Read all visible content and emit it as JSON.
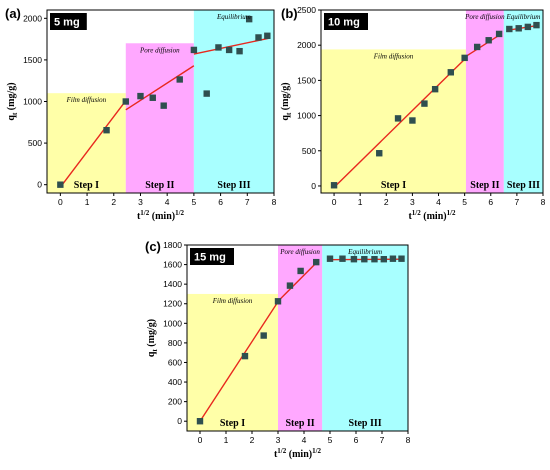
{
  "colors": {
    "film": "#ffff99",
    "pore": "#ff99ff",
    "equilibrium": "#99ffff",
    "fit_line": "#e8281e",
    "marker": "#2f4f4f",
    "mass_box": "#000000"
  },
  "chart_data": [
    {
      "type": "scatter",
      "panel_label": "(a)",
      "mass_label": "5 mg",
      "xlabel": "t",
      "ylabel": "q",
      "xlim": [
        -0.5,
        8
      ],
      "ylim": [
        -100,
        2100
      ],
      "x_ticks": [
        0,
        1,
        2,
        3,
        4,
        5,
        6,
        7,
        8
      ],
      "y_ticks": [
        0,
        500,
        1000,
        1500,
        2000
      ],
      "regions": [
        {
          "name": "Film diffusion",
          "step": "Step I",
          "x_start": -0.5,
          "x_end": 2.45,
          "y_top": 1100,
          "color": "film"
        },
        {
          "name": "Pore diffusion",
          "step": "Step II",
          "x_start": 2.45,
          "x_end": 5.0,
          "y_top": 1700,
          "color": "pore"
        },
        {
          "name": "Equilibrium",
          "step": "Step III",
          "x_start": 5.0,
          "x_end": 8.0,
          "y_top": 2100,
          "color": "equilibrium"
        }
      ],
      "points": [
        {
          "x": 0,
          "y": 0
        },
        {
          "x": 1.73,
          "y": 655
        },
        {
          "x": 2.45,
          "y": 1000
        },
        {
          "x": 3.0,
          "y": 1065
        },
        {
          "x": 3.46,
          "y": 1045
        },
        {
          "x": 3.87,
          "y": 950
        },
        {
          "x": 4.47,
          "y": 1265
        },
        {
          "x": 5.0,
          "y": 1620
        },
        {
          "x": 5.48,
          "y": 1095
        },
        {
          "x": 5.92,
          "y": 1650
        },
        {
          "x": 6.32,
          "y": 1620
        },
        {
          "x": 6.71,
          "y": 1605
        },
        {
          "x": 7.07,
          "y": 1990
        },
        {
          "x": 7.42,
          "y": 1770
        },
        {
          "x": 7.75,
          "y": 1790
        }
      ],
      "fit_lines": [
        {
          "x": [
            0,
            2.45
          ],
          "y": [
            -30,
            1010
          ]
        },
        {
          "x": [
            2.45,
            5.0
          ],
          "y": [
            900,
            1430
          ]
        },
        {
          "x": [
            5.0,
            7.8
          ],
          "y": [
            1570,
            1760
          ]
        }
      ]
    },
    {
      "type": "scatter",
      "panel_label": "(b)",
      "mass_label": "10 mg",
      "xlabel": "t",
      "ylabel": "q",
      "xlim": [
        -0.5,
        8
      ],
      "ylim": [
        -100,
        2500
      ],
      "x_ticks": [
        0,
        1,
        2,
        3,
        4,
        5,
        6,
        7,
        8
      ],
      "y_ticks": [
        0,
        500,
        1000,
        1500,
        2000,
        2500
      ],
      "regions": [
        {
          "name": "Film diffusion",
          "step": "Step I",
          "x_start": -0.5,
          "x_end": 5.05,
          "y_top": 1940,
          "color": "film"
        },
        {
          "name": "Pore diffusion",
          "step": "Step II",
          "x_start": 5.05,
          "x_end": 6.5,
          "y_top": 2500,
          "color": "pore"
        },
        {
          "name": "Equilibrium",
          "step": "Step III",
          "x_start": 6.5,
          "x_end": 8.0,
          "y_top": 2500,
          "color": "equilibrium"
        }
      ],
      "points": [
        {
          "x": 0,
          "y": 10
        },
        {
          "x": 1.73,
          "y": 465
        },
        {
          "x": 2.45,
          "y": 960
        },
        {
          "x": 3.0,
          "y": 930
        },
        {
          "x": 3.46,
          "y": 1170
        },
        {
          "x": 3.87,
          "y": 1375
        },
        {
          "x": 4.47,
          "y": 1615
        },
        {
          "x": 5.0,
          "y": 1820
        },
        {
          "x": 5.48,
          "y": 1975
        },
        {
          "x": 5.92,
          "y": 2070
        },
        {
          "x": 6.32,
          "y": 2160
        },
        {
          "x": 6.71,
          "y": 2230
        },
        {
          "x": 7.07,
          "y": 2240
        },
        {
          "x": 7.42,
          "y": 2260
        },
        {
          "x": 7.75,
          "y": 2285
        }
      ],
      "fit_lines": [
        {
          "x": [
            0,
            5.0
          ],
          "y": [
            -20,
            1800
          ]
        },
        {
          "x": [
            5.0,
            6.4
          ],
          "y": [
            1830,
            2160
          ]
        },
        {
          "x": [
            6.7,
            7.8
          ],
          "y": [
            2215,
            2280
          ]
        }
      ]
    },
    {
      "type": "scatter",
      "panel_label": "(c)",
      "mass_label": "15 mg",
      "xlabel": "t",
      "ylabel": "q",
      "xlim": [
        -0.5,
        8
      ],
      "ylim": [
        -100,
        1800
      ],
      "x_ticks": [
        0,
        1,
        2,
        3,
        4,
        5,
        6,
        7,
        8
      ],
      "y_ticks": [
        0,
        200,
        400,
        600,
        800,
        1000,
        1200,
        1400,
        1600,
        1800
      ],
      "regions": [
        {
          "name": "Film diffusion",
          "step": "Step I",
          "x_start": -0.5,
          "x_end": 3.0,
          "y_top": 1300,
          "color": "film"
        },
        {
          "name": "Pore diffusion",
          "step": "Step II",
          "x_start": 3.0,
          "x_end": 4.7,
          "y_top": 1800,
          "color": "pore"
        },
        {
          "name": "Equilibrium",
          "step": "Step III",
          "x_start": 4.7,
          "x_end": 8.0,
          "y_top": 1800,
          "color": "equilibrium"
        }
      ],
      "points": [
        {
          "x": 0,
          "y": 0
        },
        {
          "x": 1.73,
          "y": 665
        },
        {
          "x": 2.45,
          "y": 875
        },
        {
          "x": 3.0,
          "y": 1225
        },
        {
          "x": 3.46,
          "y": 1385
        },
        {
          "x": 3.87,
          "y": 1535
        },
        {
          "x": 4.47,
          "y": 1625
        },
        {
          "x": 5.0,
          "y": 1660
        },
        {
          "x": 5.48,
          "y": 1660
        },
        {
          "x": 5.92,
          "y": 1655
        },
        {
          "x": 6.32,
          "y": 1655
        },
        {
          "x": 6.71,
          "y": 1655
        },
        {
          "x": 7.07,
          "y": 1655
        },
        {
          "x": 7.42,
          "y": 1660
        },
        {
          "x": 7.75,
          "y": 1660
        }
      ],
      "fit_lines": [
        {
          "x": [
            0,
            3.0
          ],
          "y": [
            0,
            1220
          ]
        },
        {
          "x": [
            3.0,
            4.5
          ],
          "y": [
            1225,
            1625
          ]
        },
        {
          "x": [
            5.0,
            7.8
          ],
          "y": [
            1650,
            1655
          ]
        }
      ]
    }
  ]
}
